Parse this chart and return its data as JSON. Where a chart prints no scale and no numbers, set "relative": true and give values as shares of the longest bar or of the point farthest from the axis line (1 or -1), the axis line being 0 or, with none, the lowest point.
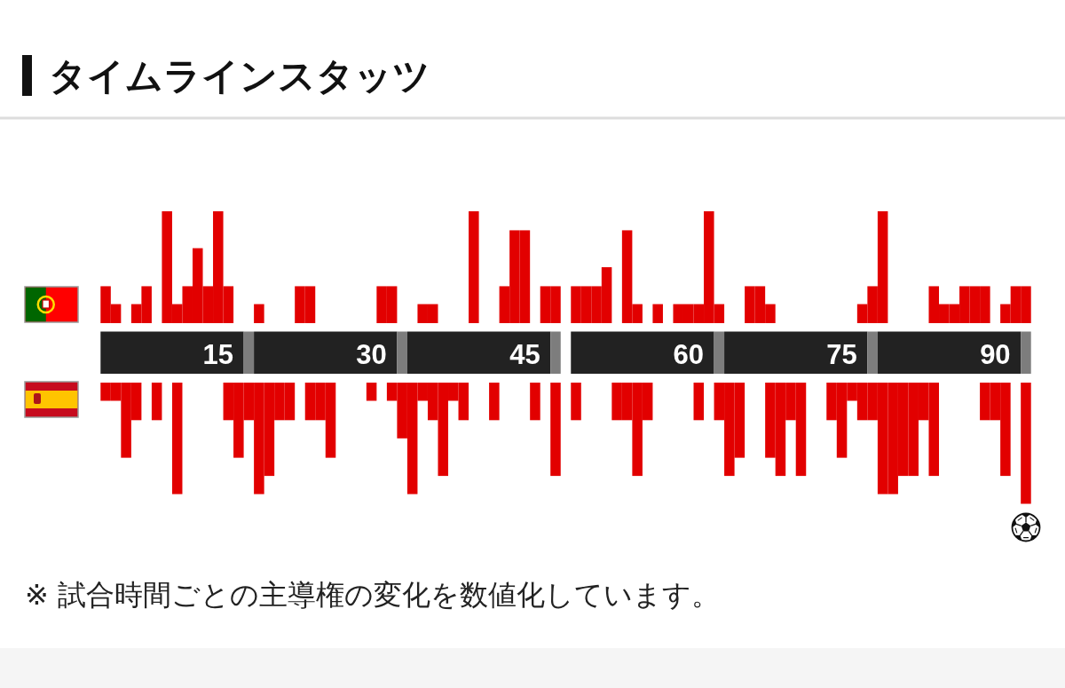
{
  "chart_data": [
    {
      "type": "bar",
      "title": "タイムラインスタッツ",
      "relative": true,
      "categories": [
        null,
        null,
        null,
        null,
        null,
        null,
        null,
        null,
        null,
        null,
        null,
        "15",
        null,
        null,
        null,
        null,
        null,
        null,
        null,
        null,
        null,
        null,
        null,
        null,
        null,
        null,
        "30",
        null,
        null,
        null,
        null,
        null,
        null,
        null,
        null,
        null,
        null,
        null,
        null,
        null,
        null,
        "45",
        null,
        null,
        null,
        null,
        null,
        null,
        null,
        null,
        null,
        null,
        null,
        null,
        null,
        null,
        null,
        "60",
        null,
        null,
        null,
        null,
        null,
        null,
        null,
        null,
        null,
        null,
        null,
        null,
        null,
        null,
        "75",
        null,
        null,
        null,
        null,
        null,
        null,
        null,
        null,
        null,
        null,
        null,
        null,
        null,
        null,
        "90",
        null,
        null,
        null
      ],
      "series": [
        {
          "color": "#e20000",
          "values": [
            0.33,
            0.17,
            null,
            0.17,
            0.33,
            null,
            1,
            0.17,
            0.33,
            0.67,
            0.33,
            1,
            0.33,
            null,
            null,
            0.17,
            null,
            null,
            null,
            0.33,
            0.33,
            null,
            null,
            null,
            null,
            null,
            null,
            0.33,
            0.33,
            null,
            null,
            0.17,
            0.17,
            null,
            null,
            null,
            1,
            null,
            null,
            0.33,
            0.83,
            0.83,
            null,
            0.33,
            0.33,
            null,
            0.33,
            0.33,
            0.33,
            0.5,
            null,
            0.83,
            0.17,
            null,
            0.17,
            null,
            0.17,
            0.17,
            0.17,
            1,
            0.17,
            null,
            null,
            0.33,
            0.33,
            0.17,
            null,
            null,
            null,
            null,
            null,
            null,
            null,
            null,
            0.17,
            0.33,
            1,
            null,
            null,
            null,
            null,
            0.33,
            0.17,
            0.17,
            0.33,
            0.33,
            0.33,
            null,
            0.17,
            0.33,
            0.33
          ]
        }
      ]
    },
    {
      "type": "bar",
      "relative": true,
      "categories": [
        null,
        null,
        null,
        null,
        null,
        null,
        null,
        null,
        null,
        null,
        null,
        null,
        null,
        null,
        null,
        null,
        null,
        null,
        null,
        null,
        null,
        null,
        null,
        null,
        null,
        null,
        null,
        null,
        null,
        null,
        null,
        null,
        null,
        null,
        null,
        null,
        null,
        null,
        null,
        null,
        null,
        null,
        null,
        null,
        null,
        null,
        null,
        null,
        null,
        null,
        null,
        null,
        null,
        null,
        null,
        null,
        null,
        null,
        null,
        null,
        null,
        null,
        null,
        null,
        null,
        null,
        null,
        null,
        null,
        null,
        null,
        null,
        null,
        null,
        null,
        null,
        null,
        null,
        null,
        null,
        null,
        null,
        null,
        null,
        null,
        null,
        null,
        null,
        null,
        null,
        null
      ],
      "series": [
        {
          "color": "#e20000",
          "values": [
            -0.15,
            -0.15,
            -0.62,
            -0.31,
            null,
            -0.31,
            null,
            -0.92,
            null,
            null,
            null,
            null,
            -0.31,
            -0.62,
            -0.31,
            -0.92,
            -0.77,
            -0.31,
            -0.31,
            null,
            -0.31,
            -0.31,
            -0.62,
            null,
            null,
            null,
            -0.15,
            null,
            -0.15,
            -0.46,
            -0.92,
            -0.15,
            -0.31,
            -0.77,
            -0.15,
            -0.31,
            null,
            null,
            -0.31,
            null,
            null,
            null,
            -0.31,
            null,
            -0.77,
            null,
            -0.31,
            null,
            null,
            null,
            -0.31,
            -0.31,
            -0.77,
            -0.31,
            null,
            null,
            null,
            null,
            -0.31,
            null,
            -0.31,
            -0.77,
            -0.62,
            null,
            null,
            -0.62,
            -0.77,
            -0.31,
            -0.77,
            null,
            null,
            -0.31,
            -0.62,
            -0.15,
            -0.31,
            -0.31,
            -0.92,
            -0.92,
            -0.77,
            -0.77,
            -0.31,
            -0.77,
            null,
            null,
            null,
            null,
            -0.31,
            -0.31,
            -0.77,
            null,
            -1
          ]
        }
      ],
      "annotations": [
        "※ 試合時間ごとの主導権の変化を数値化しています。"
      ]
    }
  ]
}
